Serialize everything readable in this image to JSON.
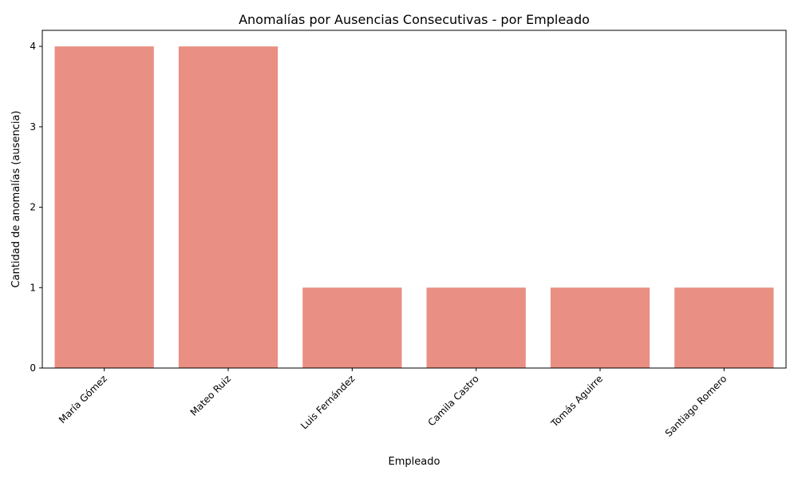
{
  "chart_data": {
    "type": "bar",
    "title": "Anomalías por Ausencias Consecutivas - por Empleado",
    "xlabel": "Empleado",
    "ylabel": "Cantidad de anomalías (ausencia)",
    "categories": [
      "María Gómez",
      "Mateo Ruiz",
      "Luis Fernández",
      "Camila Castro",
      "Tomás Aguirre",
      "Santiago Romero"
    ],
    "values": [
      4,
      4,
      1,
      1,
      1,
      1
    ],
    "ylim": [
      0,
      4.2
    ],
    "yticks": [
      "0",
      "1",
      "2",
      "3",
      "4"
    ],
    "bar_color": "#e98f83",
    "grid": false,
    "legend": "none"
  }
}
